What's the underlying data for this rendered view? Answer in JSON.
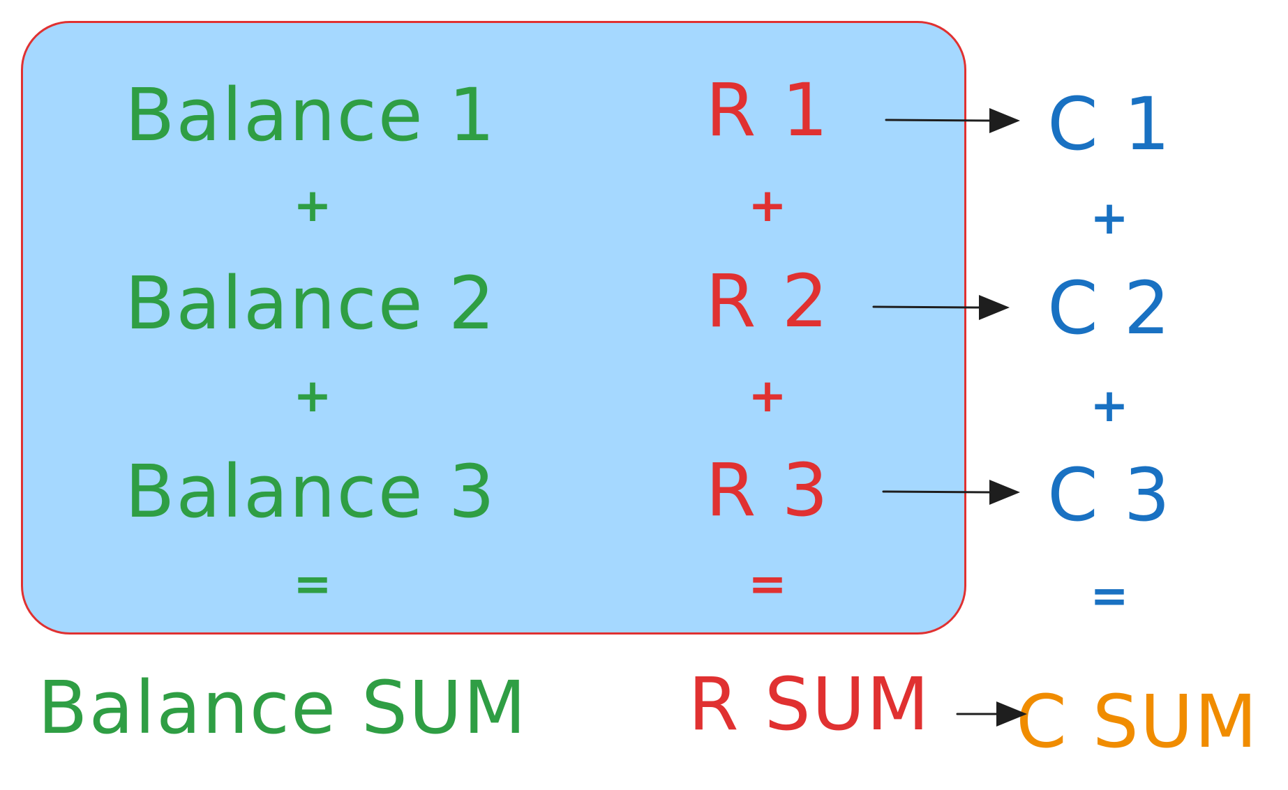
{
  "colors": {
    "box_fill": "#a5d8ff",
    "box_stroke": "#e03131",
    "balance": "#2f9e44",
    "r": "#e03131",
    "c": "#1971c2",
    "c_sum": "#f08c00",
    "arrow": "#1e1e1e"
  },
  "balance_column": {
    "items": [
      "Balance 1",
      "Balance 2",
      "Balance 3"
    ],
    "plus": "+",
    "equals": "=",
    "sum": "Balance SUM"
  },
  "r_column": {
    "items": [
      "R 1",
      "R 2",
      "R 3"
    ],
    "plus": "+",
    "equals": "=",
    "sum": "R SUM"
  },
  "c_column": {
    "items": [
      "C 1",
      "C 2",
      "C 3"
    ],
    "plus": "+",
    "equals": "=",
    "sum": "C SUM"
  }
}
